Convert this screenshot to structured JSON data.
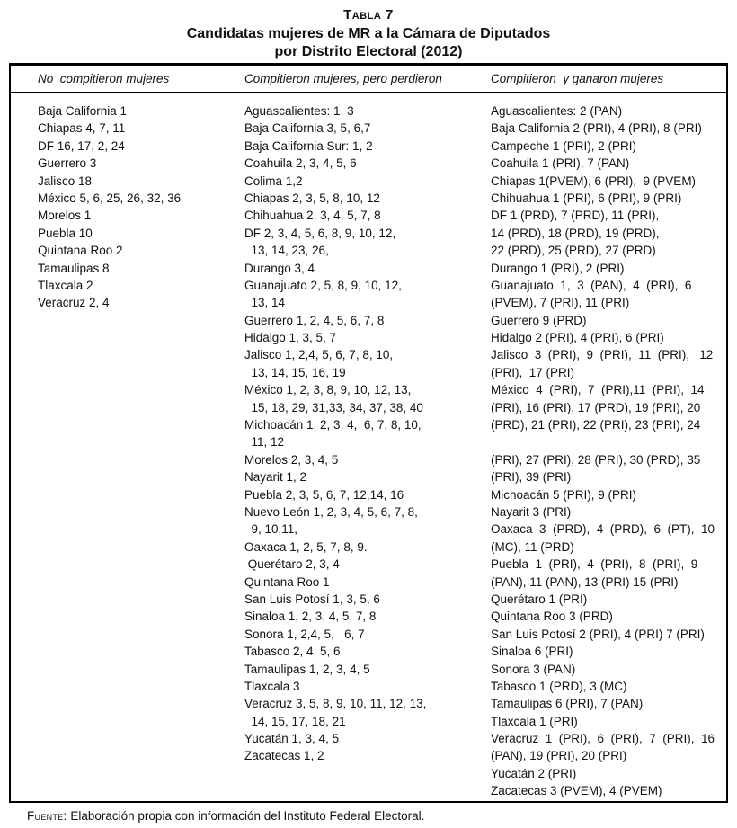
{
  "page": {
    "title_label": "Tabla 7",
    "title_line1": "Candidatas mujeres de MR a la Cámara de Diputados",
    "title_line2": "por Distrito Electoral (2012)",
    "source_label": "Fuente:",
    "source_text": "Elaboración propia con información del Instituto Federal Electoral."
  },
  "table": {
    "columns": [
      {
        "header": "No  compitieron mujeres",
        "lines": [
          "Baja California 1",
          "Chiapas 4, 7, 11",
          "DF 16, 17, 2, 24",
          "Guerrero 3",
          "Jalisco 18",
          "México 5, 6, 25, 26, 32, 36",
          "Morelos 1",
          "Puebla 10",
          "Quintana Roo 2",
          "Tamaulipas 8",
          "Tlaxcala 2",
          "Veracruz 2, 4"
        ]
      },
      {
        "header": "Compitieron mujeres, pero perdieron",
        "lines": [
          "Aguascalientes: 1, 3",
          "Baja California 3, 5, 6,7",
          "Baja California Sur: 1, 2",
          "Coahuila 2, 3, 4, 5, 6",
          "Colima 1,2",
          "Chiapas 2, 3, 5, 8, 10, 12",
          "Chihuahua 2, 3, 4, 5, 7, 8",
          "DF 2, 3, 4, 5, 6, 8, 9, 10, 12,",
          "  13, 14, 23, 26,",
          "Durango 3, 4",
          "Guanajuato 2, 5, 8, 9, 10, 12,",
          "  13, 14",
          "Guerrero 1, 2, 4, 5, 6, 7, 8",
          "Hidalgo 1, 3, 5, 7",
          "Jalisco 1, 2,4, 5, 6, 7, 8, 10,",
          "  13, 14, 15, 16, 19",
          "México 1, 2, 3, 8, 9, 10, 12, 13,",
          "  15, 18, 29, 31,33, 34, 37, 38, 40",
          "Michoacán 1, 2, 3, 4,  6, 7, 8, 10,",
          "  11, 12",
          "Morelos 2, 3, 4, 5",
          "Nayarit 1, 2",
          "Puebla 2, 3, 5, 6, 7, 12,14, 16",
          "Nuevo León 1, 2, 3, 4, 5, 6, 7, 8,",
          "  9, 10,11,",
          "Oaxaca 1, 2, 5, 7, 8, 9.",
          " Querétaro 2, 3, 4",
          "Quintana Roo 1",
          "San Luis Potosí 1, 3, 5, 6",
          "Sinaloa 1, 2, 3, 4, 5, 7, 8",
          "Sonora 1, 2,4, 5,   6, 7",
          "Tabasco 2, 4, 5, 6",
          "Tamaulipas 1, 2, 3, 4, 5",
          "Tlaxcala 3",
          "Veracruz 3, 5, 8, 9, 10, 11, 12, 13,",
          "  14, 15, 17, 18, 21",
          "Yucatán 1, 3, 4, 5",
          "Zacatecas 1, 2"
        ]
      },
      {
        "header": "Compitieron  y ganaron mujeres",
        "lines": [
          "Aguascalientes: 2 (PAN)",
          "Baja California 2 (PRI), 4 (PRI), 8 (PRI)",
          "Campeche 1 (PRI), 2 (PRI)",
          "Coahuila 1 (PRI), 7 (PAN)",
          "Chiapas 1(PVEM), 6 (PRI),  9 (PVEM)",
          "Chihuahua 1 (PRI), 6 (PRI), 9 (PRI)",
          "DF 1 (PRD), 7 (PRD), 11 (PRI),",
          "14 (PRD), 18 (PRD), 19 (PRD),",
          "22 (PRD), 25 (PRD), 27 (PRD)",
          "Durango 1 (PRI), 2 (PRI)",
          "Guanajuato  1,  3  (PAN),  4  (PRI),  6",
          "(PVEM), 7 (PRI), 11 (PRI)",
          "Guerrero 9 (PRD)",
          "Hidalgo 2 (PRI), 4 (PRI), 6 (PRI)",
          "Jalisco  3  (PRI),  9  (PRI),  11  (PRI),   12",
          "(PRI),  17 (PRI)",
          "México  4  (PRI),  7  (PRI),11  (PRI),  14",
          "(PRI), 16 (PRI), 17 (PRD), 19 (PRI), 20",
          "(PRD), 21 (PRI), 22 (PRI), 23 (PRI), 24",
          "",
          "(PRI), 27 (PRI), 28 (PRI), 30 (PRD), 35",
          "(PRI), 39 (PRI)",
          "Michoacán 5 (PRI), 9 (PRI)",
          "Nayarit 3 (PRI)",
          "Oaxaca  3  (PRD),  4  (PRD),  6  (PT),  10",
          "(MC), 11 (PRD)",
          "Puebla  1  (PRI),  4  (PRI),  8  (PRI),  9",
          "(PAN), 11 (PAN), 13 (PRI) 15 (PRI)",
          "Querétaro 1 (PRI)",
          "Quintana Roo 3 (PRD)",
          "San Luis Potosí 2 (PRI), 4 (PRI) 7 (PRI)",
          "Sinaloa 6 (PRI)",
          "Sonora 3 (PAN)",
          "Tabasco 1 (PRD), 3 (MC)",
          "Tamaulipas 6 (PRI), 7 (PAN)",
          "Tlaxcala 1 (PRI)",
          "Veracruz  1  (PRI),  6  (PRI),  7  (PRI),  16",
          "(PAN), 19 (PRI), 20 (PRI)",
          "Yucatán 2 (PRI)",
          "Zacatecas 3 (PVEM), 4 (PVEM)"
        ]
      }
    ]
  }
}
